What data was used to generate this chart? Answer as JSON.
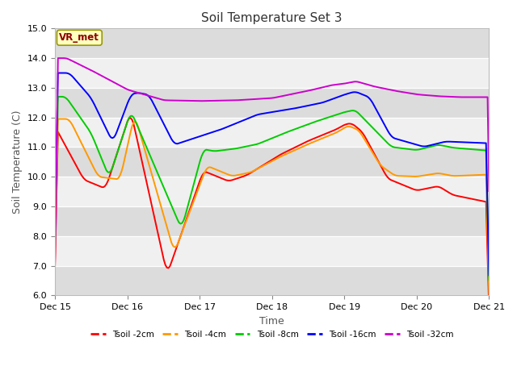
{
  "title": "Soil Temperature Set 3",
  "xlabel": "Time",
  "ylabel": "Soil Temperature (C)",
  "ylim": [
    6.0,
    15.0
  ],
  "yticks": [
    6.0,
    7.0,
    8.0,
    9.0,
    10.0,
    11.0,
    12.0,
    13.0,
    14.0,
    15.0
  ],
  "xtick_labels": [
    "Dec 15",
    "Dec 16",
    "Dec 17",
    "Dec 18",
    "Dec 19",
    "Dec 20",
    "Dec 21"
  ],
  "annotation": "VR_met",
  "fig_bg": "#ffffff",
  "plot_bg": "#ffffff",
  "band_dark": "#dcdcdc",
  "band_light": "#f0f0f0",
  "series": {
    "Tsoil -2cm": {
      "color": "#ff0000"
    },
    "Tsoil -4cm": {
      "color": "#ff9900"
    },
    "Tsoil -8cm": {
      "color": "#00cc00"
    },
    "Tsoil -16cm": {
      "color": "#0000ff"
    },
    "Tsoil -32cm": {
      "color": "#cc00cc"
    }
  },
  "n_points": 288
}
